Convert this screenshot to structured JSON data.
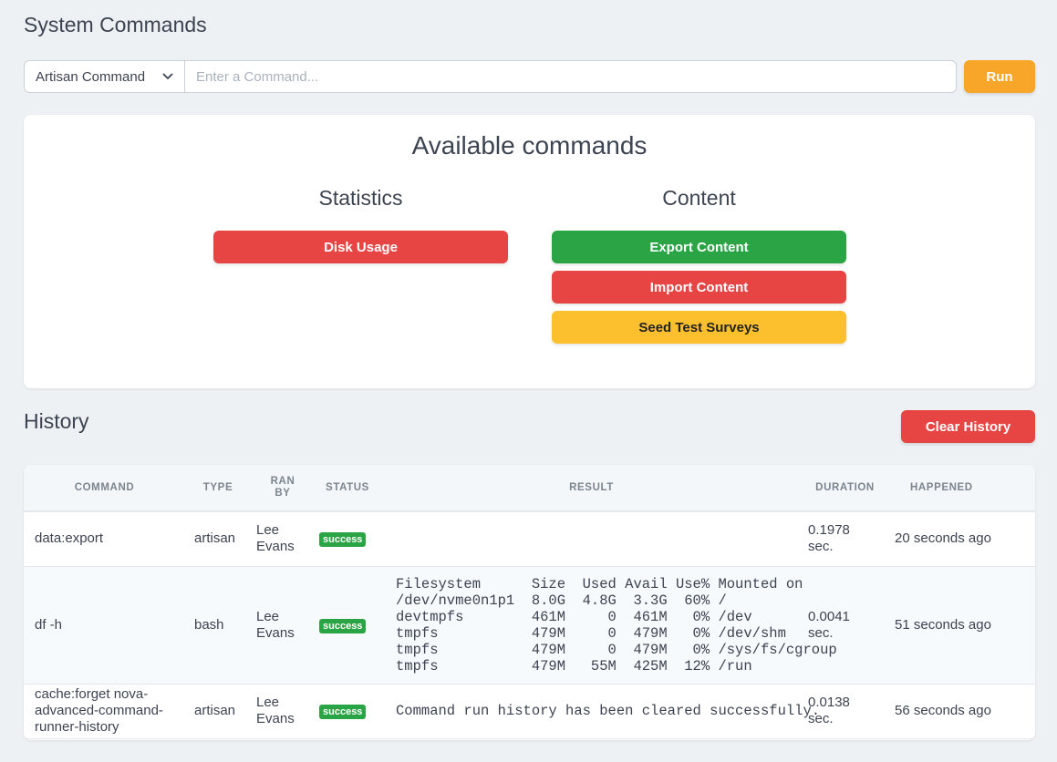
{
  "page": {
    "title": "System Commands"
  },
  "command_bar": {
    "select_value": "Artisan Command",
    "input_placeholder": "Enter a Command...",
    "run_label": "Run"
  },
  "available": {
    "title": "Available commands",
    "groups": [
      {
        "title": "Statistics",
        "buttons": [
          {
            "label": "Disk Usage"
          }
        ]
      },
      {
        "title": "Content",
        "buttons": [
          {
            "label": "Export Content"
          },
          {
            "label": "Import Content"
          },
          {
            "label": "Seed Test Surveys"
          }
        ]
      }
    ]
  },
  "history": {
    "title": "History",
    "clear_label": "Clear History",
    "columns": {
      "command": "COMMAND",
      "type": "TYPE",
      "ran_by": "RAN BY",
      "status": "STATUS",
      "result": "RESULT",
      "duration": "DURATION",
      "happened": "HAPPENED"
    },
    "rows": [
      {
        "command": "data:export",
        "type": "artisan",
        "ran_by": "Lee Evans",
        "status": "success",
        "result": "",
        "duration": "0.1978 sec.",
        "happened": "20 seconds ago"
      },
      {
        "command": "df -h",
        "type": "bash",
        "ran_by": "Lee Evans",
        "status": "success",
        "result": "Filesystem      Size  Used Avail Use% Mounted on\n/dev/nvme0n1p1  8.0G  4.8G  3.3G  60% /\ndevtmpfs        461M     0  461M   0% /dev\ntmpfs           479M     0  479M   0% /dev/shm\ntmpfs           479M     0  479M   0% /sys/fs/cgroup\ntmpfs           479M   55M  425M  12% /run",
        "duration": "0.0041 sec.",
        "happened": "51 seconds ago"
      },
      {
        "command": "cache:forget nova-advanced-command-runner-history",
        "type": "artisan",
        "ran_by": "Lee Evans",
        "status": "success",
        "result": "Command run history has been cleared successfully.",
        "duration": "0.0138 sec.",
        "happened": "56 seconds ago"
      }
    ]
  },
  "colors": {
    "background": "#eef1f4",
    "run": "#f8a62a",
    "danger": "#e74444",
    "success": "#2aa444",
    "warning": "#fcc02e"
  }
}
